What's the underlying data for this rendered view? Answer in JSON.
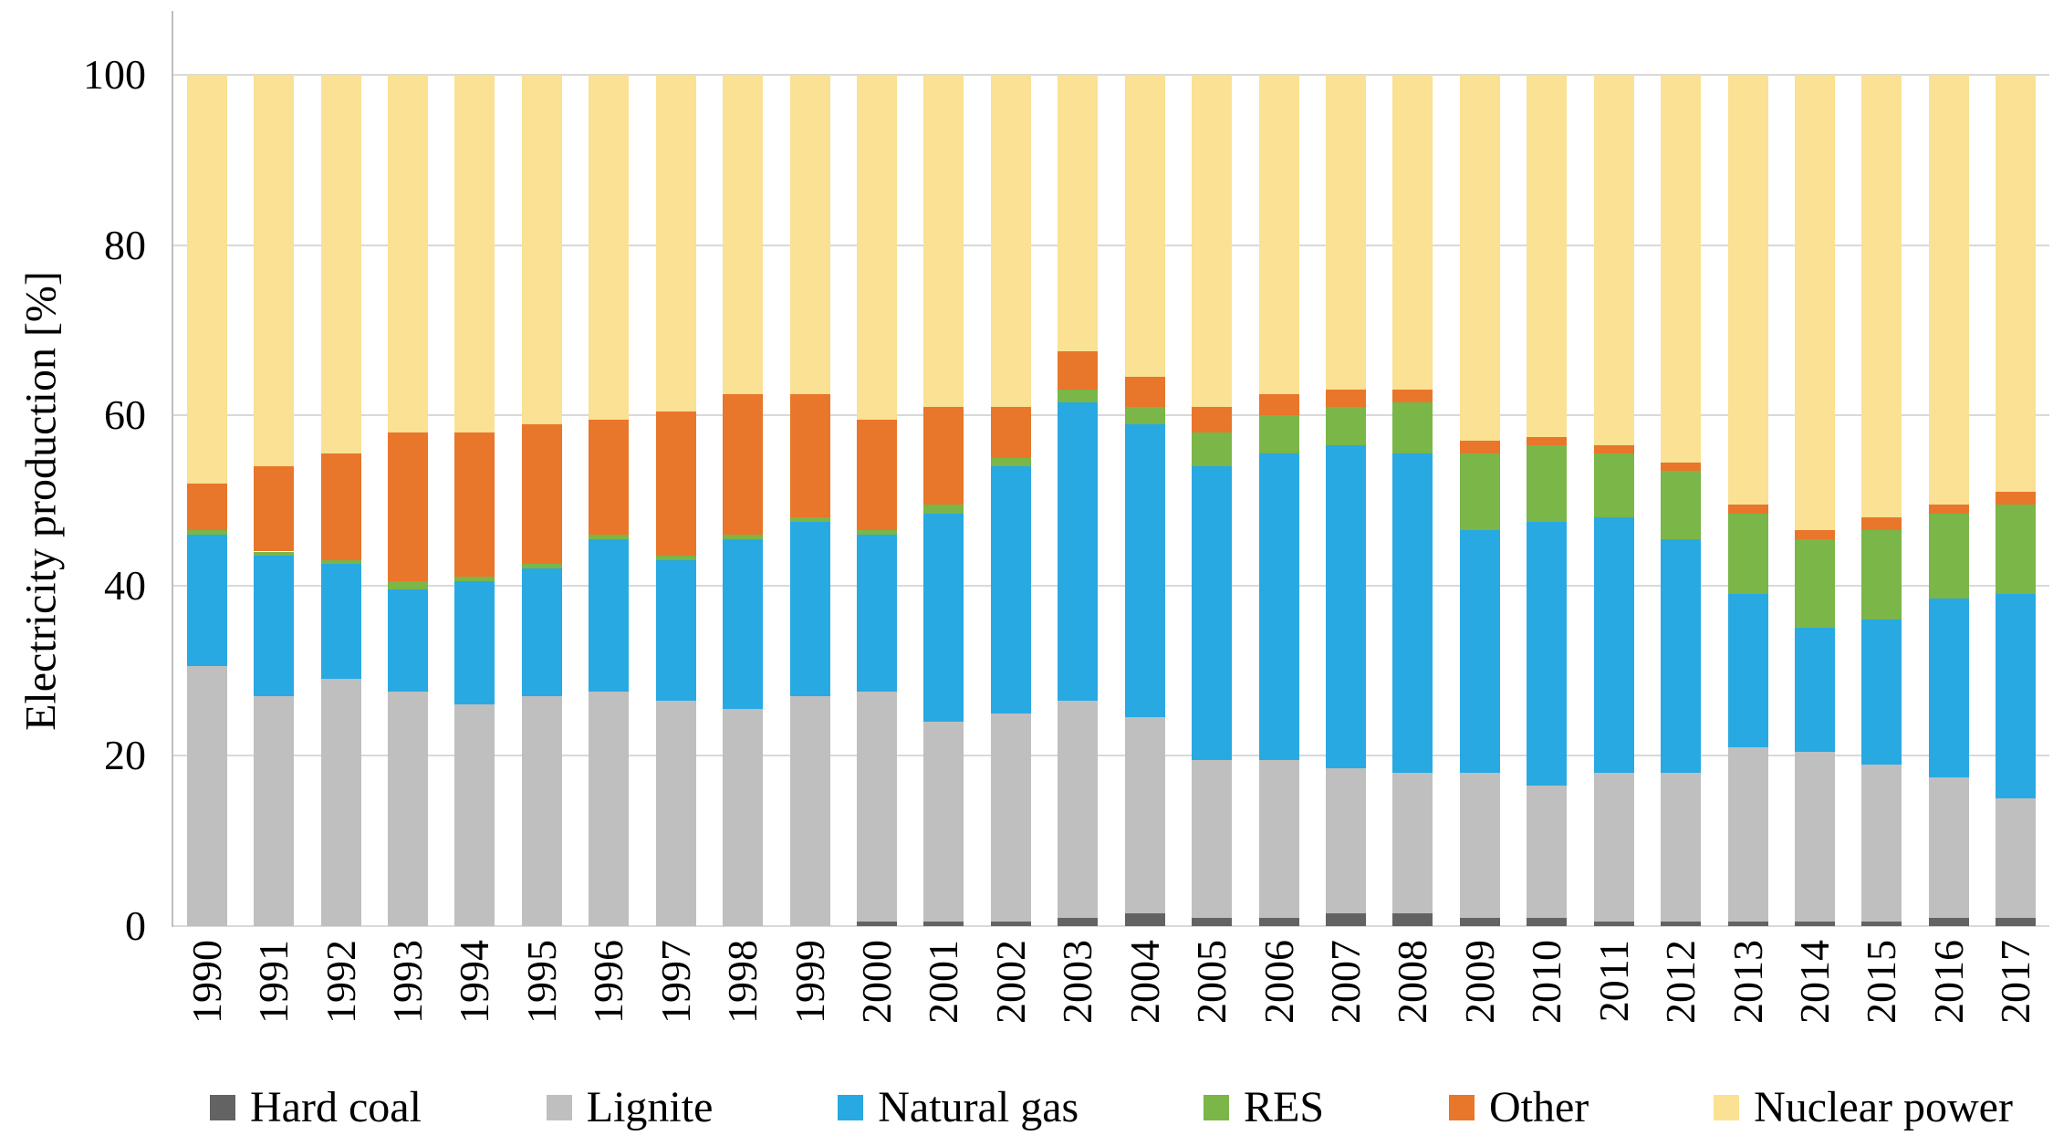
{
  "chart": {
    "background": "#ffffff",
    "gridline_color": "#d9d9d9",
    "axis_color": "#bfbfbf"
  },
  "chart_data": {
    "type": "bar",
    "stacked": true,
    "title": "",
    "xlabel": "",
    "ylabel": "Electricity  production  [%]",
    "ylim": [
      0,
      100
    ],
    "yticks": [
      0,
      20,
      40,
      60,
      80,
      100
    ],
    "grid": true,
    "legend_position": "bottom",
    "categories": [
      "1990",
      "1991",
      "1992",
      "1993",
      "1994",
      "1995",
      "1996",
      "1997",
      "1998",
      "1999",
      "2000",
      "2001",
      "2002",
      "2003",
      "2004",
      "2005",
      "2006",
      "2007",
      "2008",
      "2009",
      "2010",
      "2011",
      "2012",
      "2013",
      "2014",
      "2015",
      "2016",
      "2017"
    ],
    "series": [
      {
        "name": "Hard coal",
        "color": "#636363",
        "values": [
          0,
          0,
          0,
          0,
          0,
          0,
          0,
          0,
          0,
          0,
          0.5,
          0.5,
          0.5,
          1,
          1.5,
          1,
          1,
          1.5,
          1.5,
          1,
          1,
          0.5,
          0.5,
          0.5,
          0.5,
          0.5,
          1,
          1
        ]
      },
      {
        "name": "Lignite",
        "color": "#bfbfbf",
        "values": [
          30.5,
          27,
          29,
          27.5,
          26,
          27,
          27.5,
          26.5,
          25.5,
          27,
          27,
          23.5,
          24.5,
          25.5,
          23,
          18.5,
          18.5,
          17,
          16.5,
          17,
          15.5,
          17.5,
          17.5,
          20.5,
          20,
          18.5,
          16.5,
          14
        ]
      },
      {
        "name": "Natural gas",
        "color": "#29a9e1",
        "values": [
          15.5,
          16.5,
          13.5,
          12,
          14.5,
          15,
          18,
          16.5,
          20,
          20.5,
          18.5,
          24.5,
          29,
          35,
          34.5,
          34.5,
          36,
          38,
          37.5,
          28.5,
          31,
          30,
          27.5,
          18,
          14.5,
          17,
          21,
          24
        ]
      },
      {
        "name": "RES",
        "color": "#7ab648",
        "values": [
          0.5,
          0.5,
          0.5,
          1,
          0.5,
          0.5,
          0.5,
          0.5,
          0.5,
          0.5,
          0.5,
          1,
          1,
          1.5,
          2,
          4,
          4.5,
          4.5,
          6,
          9,
          9,
          7.5,
          8,
          9.5,
          10.5,
          10.5,
          10,
          10.5
        ]
      },
      {
        "name": "Other",
        "color": "#e8762b",
        "values": [
          5.5,
          10,
          12.5,
          17.5,
          17,
          16.5,
          13.5,
          17,
          16.5,
          14.5,
          13,
          11.5,
          6,
          4.5,
          3.5,
          3,
          2.5,
          2,
          1.5,
          1.5,
          1,
          1,
          1,
          1,
          1,
          1.5,
          1,
          1.5
        ]
      },
      {
        "name": "Nuclear power",
        "color": "#fae193",
        "values": [
          48,
          46,
          44.5,
          42,
          42,
          41,
          40.5,
          39.5,
          37.5,
          37.5,
          40.5,
          39,
          39,
          32.5,
          35.5,
          39,
          37.5,
          37,
          37,
          43,
          42.5,
          43.5,
          45.5,
          50.5,
          53.5,
          52,
          50.5,
          49
        ]
      }
    ]
  }
}
